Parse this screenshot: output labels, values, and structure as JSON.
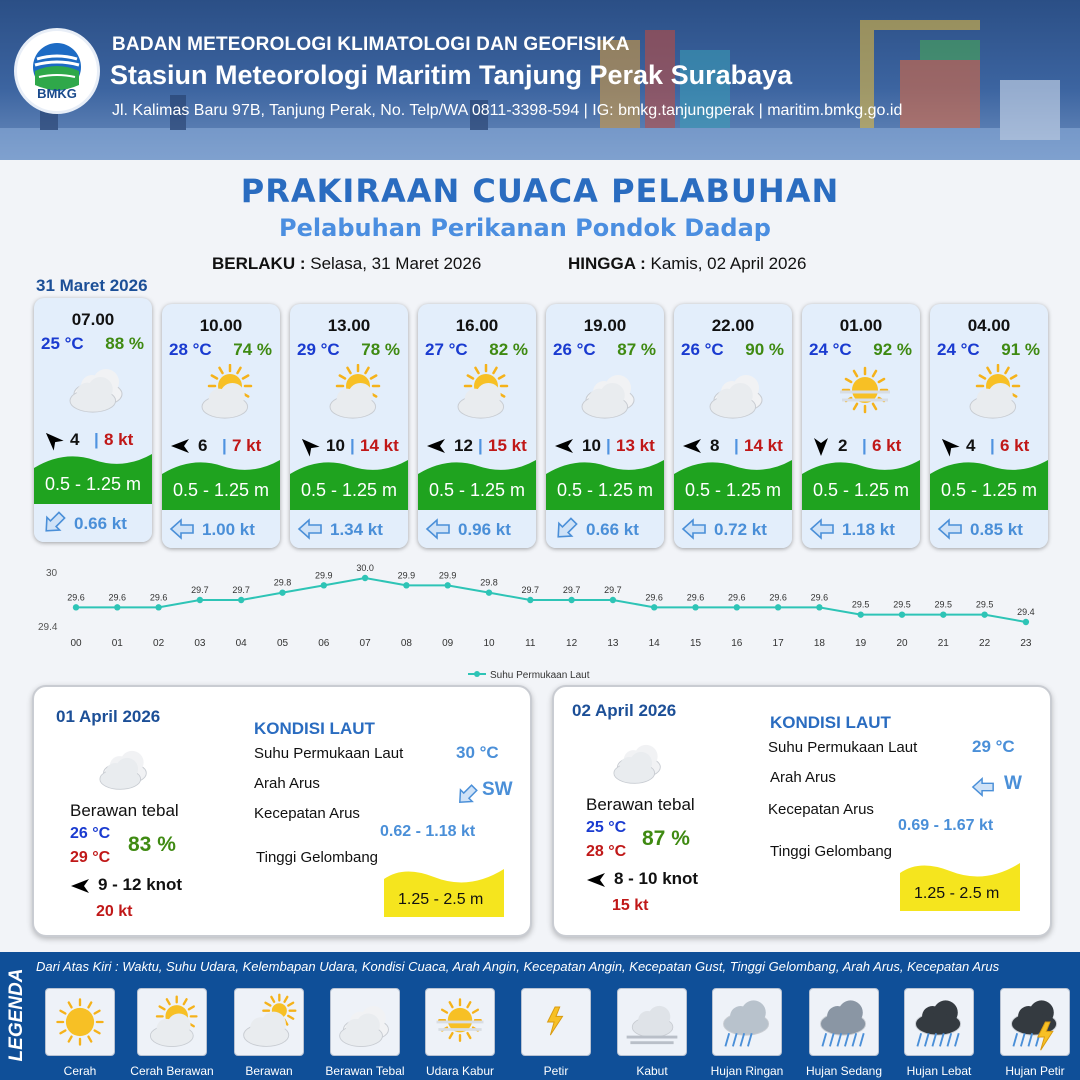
{
  "header": {
    "org": "BADAN METEOROLOGI KLIMATOLOGI DAN GEOFISIKA",
    "station": "Stasiun Meteorologi Maritim Tanjung Perak Surabaya",
    "address": "Jl. Kalimas Baru 97B, Tanjung Perak, No. Telp/WA 0811-3398-594 | IG: bmkg.tanjungperak | maritim.bmkg.go.id",
    "logo_text": "BMKG"
  },
  "title": "PRAKIRAAN CUACA PELABUHAN",
  "subtitle": "Pelabuhan Perikanan Pondok Dadap",
  "validity": {
    "from_label": "BERLAKU :",
    "from_value": "Selasa, 31 Maret 2026",
    "to_label": "HINGGA :",
    "to_value": "Kamis, 02 April 2026"
  },
  "forecast_date": "31 Maret 2026",
  "forecasts": [
    {
      "time": "07.00",
      "temp": "25 °C",
      "humidity": "88 %",
      "icon": "berawan-tebal",
      "wind_dir": "NE",
      "wind_speed": "4",
      "gust": "8 kt",
      "wave": "0.5 - 1.25 m",
      "current_dir": "SW",
      "current_speed": "0.66 kt"
    },
    {
      "time": "10.00",
      "temp": "28 °C",
      "humidity": "74 %",
      "icon": "cerah-berawan",
      "wind_dir": "E",
      "wind_speed": "6",
      "gust": "7 kt",
      "wave": "0.5 - 1.25 m",
      "current_dir": "W",
      "current_speed": "1.00 kt"
    },
    {
      "time": "13.00",
      "temp": "29 °C",
      "humidity": "78 %",
      "icon": "cerah-berawan",
      "wind_dir": "SE",
      "wind_speed": "10",
      "gust": "14 kt",
      "wave": "0.5 - 1.25 m",
      "current_dir": "W",
      "current_speed": "1.34 kt"
    },
    {
      "time": "16.00",
      "temp": "27 °C",
      "humidity": "82 %",
      "icon": "cerah-berawan",
      "wind_dir": "E",
      "wind_speed": "12",
      "gust": "15 kt",
      "wave": "0.5 - 1.25 m",
      "current_dir": "W",
      "current_speed": "0.96 kt"
    },
    {
      "time": "19.00",
      "temp": "26 °C",
      "humidity": "87 %",
      "icon": "berawan-tebal",
      "wind_dir": "E",
      "wind_speed": "10",
      "gust": "13 kt",
      "wave": "0.5 - 1.25 m",
      "current_dir": "SW",
      "current_speed": "0.66 kt"
    },
    {
      "time": "22.00",
      "temp": "26 °C",
      "humidity": "90 %",
      "icon": "berawan-tebal",
      "wind_dir": "E",
      "wind_speed": "8",
      "gust": "14 kt",
      "wave": "0.5 - 1.25 m",
      "current_dir": "W",
      "current_speed": "0.72 kt"
    },
    {
      "time": "01.00",
      "temp": "24 °C",
      "humidity": "92 %",
      "icon": "udara-kabur",
      "wind_dir": "N",
      "wind_speed": "2",
      "gust": "6 kt",
      "wave": "0.5 - 1.25 m",
      "current_dir": "W",
      "current_speed": "1.18 kt"
    },
    {
      "time": "04.00",
      "temp": "24 °C",
      "humidity": "91 %",
      "icon": "cerah-berawan",
      "wind_dir": "NE",
      "wind_speed": "4",
      "gust": "6 kt",
      "wave": "0.5 - 1.25 m",
      "current_dir": "W",
      "current_speed": "0.85 kt"
    }
  ],
  "chart_data": {
    "type": "line",
    "categories": [
      "00",
      "01",
      "02",
      "03",
      "04",
      "05",
      "06",
      "07",
      "08",
      "09",
      "10",
      "11",
      "12",
      "13",
      "14",
      "15",
      "16",
      "17",
      "18",
      "19",
      "20",
      "21",
      "22",
      "23"
    ],
    "series": [
      {
        "name": "Suhu Permukaan Laut",
        "values": [
          29.6,
          29.6,
          29.6,
          29.7,
          29.7,
          29.8,
          29.9,
          30.0,
          29.9,
          29.9,
          29.8,
          29.7,
          29.7,
          29.7,
          29.6,
          29.6,
          29.6,
          29.6,
          29.6,
          29.5,
          29.5,
          29.5,
          29.5,
          29.4
        ]
      }
    ],
    "y_ticks": [
      "30",
      "29.4"
    ],
    "data_labels": [
      "29.6",
      "29.6",
      "29.6",
      "29.7",
      "29.7",
      "29.8",
      "29.9",
      "30.0",
      "29.9",
      "29.9",
      "29.8",
      "29.7",
      "29.7",
      "29.7",
      "29.6",
      "29.6",
      "29.6",
      "29.6",
      "29.6",
      "29.5",
      "29.5",
      "29.5",
      "29.5",
      "29.4"
    ],
    "ylim": [
      29.4,
      30
    ],
    "grid": false,
    "legend_position": "bottom-center",
    "color": "#2ec4b6"
  },
  "days": [
    {
      "date": "01 April 2026",
      "condition": "Berawan tebal",
      "tmin": "26 °C",
      "tmax": "29 °C",
      "humidity": "83 %",
      "wind_dir": "E",
      "wind": "9  - 12 knot",
      "gust": "20 kt",
      "sea_header": "KONDISI LAUT",
      "sst_label": "Suhu Permukaan Laut",
      "sst": "30 °C",
      "current_dir_label": "Arah Arus",
      "current_dir": "SW",
      "current_speed_label": "Kecepatan Arus",
      "current_speed": "0.62  - 1.18 kt",
      "wave_label": "Tinggi Gelombang",
      "wave": "1.25 - 2.5 m"
    },
    {
      "date": "02 April 2026",
      "condition": "Berawan tebal",
      "tmin": "25 °C",
      "tmax": "28 °C",
      "humidity": "87 %",
      "wind_dir": "E",
      "wind": "8  - 10 knot",
      "gust": "15 kt",
      "sea_header": "KONDISI LAUT",
      "sst_label": "Suhu Permukaan Laut",
      "sst": "29 °C",
      "current_dir_label": "Arah Arus",
      "current_dir": "W",
      "current_speed_label": "Kecepatan Arus",
      "current_speed": "0.69  - 1.67 kt",
      "wave_label": "Tinggi Gelombang",
      "wave": "1.25 - 2.5 m"
    }
  ],
  "legend": {
    "title": "LEGENDA",
    "note": "Dari Atas Kiri : Waktu, Suhu Udara, Kelembapan Udara, Kondisi Cuaca, Arah Angin, Kecepatan Angin, Kecepatan Gust, Tinggi Gelombang, Arah Arus, Kecepatan Arus",
    "items": [
      {
        "icon": "cerah",
        "label": "Cerah"
      },
      {
        "icon": "cerah-berawan",
        "label": "Cerah Berawan"
      },
      {
        "icon": "berawan",
        "label": "Berawan"
      },
      {
        "icon": "berawan-tebal",
        "label": "Berawan Tebal"
      },
      {
        "icon": "udara-kabur",
        "label": "Udara Kabur"
      },
      {
        "icon": "petir",
        "label": "Petir"
      },
      {
        "icon": "kabut",
        "label": "Kabut"
      },
      {
        "icon": "hujan-ringan",
        "label": "Hujan Ringan"
      },
      {
        "icon": "hujan-sedang",
        "label": "Hujan Sedang"
      },
      {
        "icon": "hujan-lebat",
        "label": "Hujan Lebat"
      },
      {
        "icon": "hujan-petir",
        "label": "Hujan Petir"
      }
    ]
  },
  "colors": {
    "title": "#2a6cc0",
    "wave_band": "#1fa31f",
    "temp": "#1a3bd0",
    "humidity": "#3f8a12",
    "gust": "#c01818",
    "current": "#4a8fd8",
    "legend_bg": "#0f4f98"
  }
}
